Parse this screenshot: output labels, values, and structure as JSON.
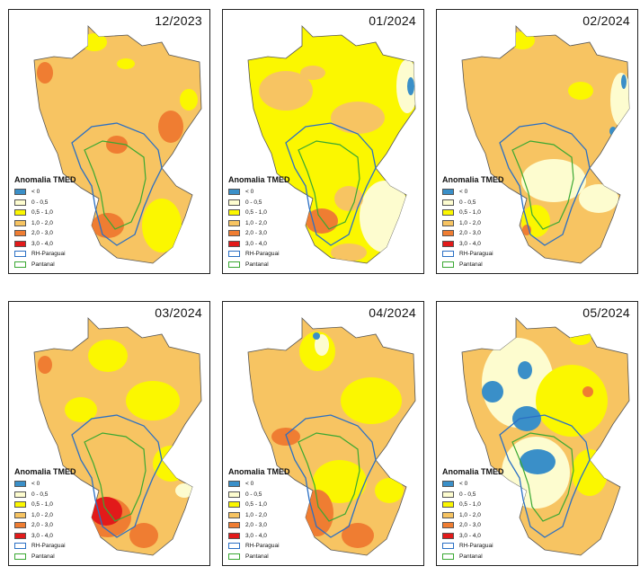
{
  "legend": {
    "title": "Anomalia TMED",
    "classes": [
      {
        "label": "< 0",
        "color": "#3a8fc8"
      },
      {
        "label": "0 - 0,5",
        "color": "#fdfccf"
      },
      {
        "label": "0,5 - 1,0",
        "color": "#fbf700"
      },
      {
        "label": "1,0 - 2,0",
        "color": "#f7c462"
      },
      {
        "label": "2,0 - 3,0",
        "color": "#ef7d32"
      },
      {
        "label": "3,0 - 4,0",
        "color": "#e21a1a"
      }
    ],
    "boundaries": [
      {
        "label": "RH-Paraguai",
        "color": "#2a6fc4"
      },
      {
        "label": "Pantanal",
        "color": "#3aa832"
      }
    ]
  },
  "panels": [
    {
      "date": "12/2023",
      "base_class": "1,0 - 2,0"
    },
    {
      "date": "01/2024",
      "base_class": "0,5 - 1,0"
    },
    {
      "date": "02/2024",
      "base_class": "1,0 - 2,0"
    },
    {
      "date": "03/2024",
      "base_class": "1,0 - 2,0"
    },
    {
      "date": "04/2024",
      "base_class": "1,0 - 2,0"
    },
    {
      "date": "05/2024",
      "base_class": "1,0 - 2,0"
    }
  ]
}
